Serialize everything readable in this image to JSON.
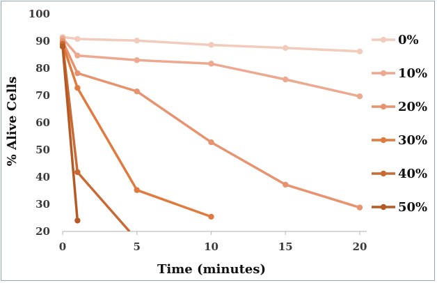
{
  "chart_data": {
    "type": "line",
    "xlabel": "Time (minutes)",
    "ylabel": "% Alive Cells",
    "xlim": [
      0,
      20
    ],
    "ylim": [
      20,
      100
    ],
    "x_ticks": [
      "0",
      "5",
      "10",
      "15",
      "20"
    ],
    "y_ticks": [
      "20",
      "30",
      "40",
      "50",
      "60",
      "70",
      "80",
      "90",
      "100"
    ],
    "grid": false,
    "legend_position": "right",
    "series": [
      {
        "name": "0%",
        "color": "#f1cbbb",
        "x": [
          0,
          1,
          5,
          10,
          15,
          20
        ],
        "y": [
          91.5,
          90.8,
          90.2,
          88.6,
          87.5,
          86.2
        ]
      },
      {
        "name": "10%",
        "color": "#eca98f",
        "x": [
          0,
          1,
          5,
          10,
          15,
          20
        ],
        "y": [
          91.0,
          84.7,
          83.0,
          81.7,
          75.9,
          69.7
        ]
      },
      {
        "name": "20%",
        "color": "#e7936f",
        "x": [
          0,
          1,
          5,
          10,
          15,
          20
        ],
        "y": [
          90.0,
          78.2,
          71.5,
          52.8,
          37.2,
          28.8
        ]
      },
      {
        "name": "30%",
        "color": "#e07b3f",
        "x": [
          0,
          1,
          5,
          10
        ],
        "y": [
          89.0,
          72.8,
          35.2,
          25.4
        ]
      },
      {
        "name": "40%",
        "color": "#c96a34",
        "x": [
          0,
          1,
          4.5
        ],
        "y": [
          89.0,
          41.8,
          20.0
        ]
      },
      {
        "name": "50%",
        "color": "#b55a24",
        "x": [
          0,
          1
        ],
        "y": [
          88.0,
          24.0
        ]
      }
    ]
  }
}
